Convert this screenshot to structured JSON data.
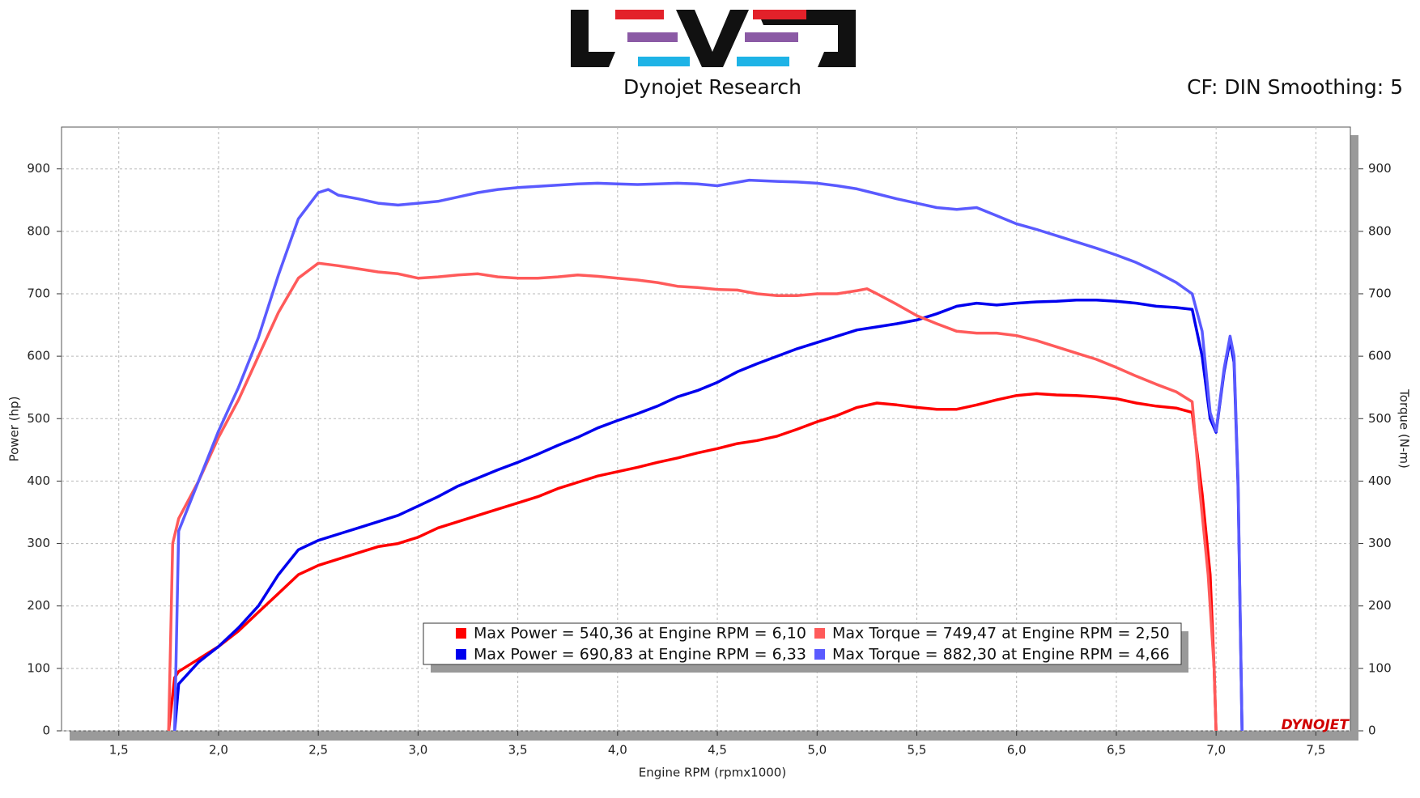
{
  "header": {
    "title": "Dynojet Research",
    "settings": "CF: DIN Smoothing: 5"
  },
  "chart_data": {
    "type": "line",
    "brand": "DYNOJET",
    "xlabel": "Engine RPM (rpmx1000)",
    "ylabel": "Power (hp)",
    "y2label": "Torque (N-m)",
    "xlim": [
      1.213,
      7.673
    ],
    "ylim": [
      0,
      967
    ],
    "y2lim": [
      0,
      967
    ],
    "grid": true,
    "xticks": [
      {
        "value": 1.5,
        "label": "1,5"
      },
      {
        "value": 2.0,
        "label": "2,0"
      },
      {
        "value": 2.5,
        "label": "2,5"
      },
      {
        "value": 3.0,
        "label": "3,0"
      },
      {
        "value": 3.5,
        "label": "3,5"
      },
      {
        "value": 4.0,
        "label": "4,0"
      },
      {
        "value": 4.5,
        "label": "4,5"
      },
      {
        "value": 5.0,
        "label": "5,0"
      },
      {
        "value": 5.5,
        "label": "5,5"
      },
      {
        "value": 6.0,
        "label": "6,0"
      },
      {
        "value": 6.5,
        "label": "6,5"
      },
      {
        "value": 7.0,
        "label": "7,0"
      },
      {
        "value": 7.5,
        "label": "7,5"
      }
    ],
    "yticks": [
      0,
      100,
      200,
      300,
      400,
      500,
      600,
      700,
      800,
      900
    ],
    "y2ticks": [
      0,
      100,
      200,
      300,
      400,
      500,
      600,
      700,
      800,
      900
    ],
    "series": [
      {
        "name": "Max Power = 540,36 at Engine RPM = 6,10",
        "color": "#ff0000",
        "x": [
          1.75,
          1.78,
          1.8,
          1.9,
          2.0,
          2.1,
          2.2,
          2.3,
          2.4,
          2.5,
          2.6,
          2.7,
          2.8,
          2.9,
          3.0,
          3.1,
          3.2,
          3.3,
          3.4,
          3.5,
          3.6,
          3.7,
          3.8,
          3.9,
          4.0,
          4.1,
          4.2,
          4.3,
          4.4,
          4.5,
          4.6,
          4.7,
          4.8,
          4.9,
          5.0,
          5.1,
          5.2,
          5.3,
          5.4,
          5.5,
          5.6,
          5.7,
          5.8,
          5.9,
          6.0,
          6.1,
          6.2,
          6.3,
          6.4,
          6.5,
          6.6,
          6.7,
          6.8,
          6.88,
          6.93,
          6.97,
          6.99,
          7.0
        ],
        "values": [
          0,
          85,
          95,
          115,
          135,
          160,
          190,
          220,
          250,
          265,
          275,
          285,
          295,
          300,
          310,
          325,
          335,
          345,
          355,
          365,
          375,
          388,
          398,
          408,
          415,
          422,
          430,
          437,
          445,
          452,
          460,
          465,
          472,
          483,
          495,
          505,
          518,
          525,
          522,
          518,
          515,
          515,
          522,
          530,
          537,
          540,
          538,
          537,
          535,
          532,
          525,
          520,
          517,
          510,
          380,
          250,
          100,
          0
        ]
      },
      {
        "name": "Max Power = 690,83 at Engine RPM = 6,33",
        "color": "#0000ee",
        "x": [
          1.78,
          1.8,
          1.9,
          2.0,
          2.1,
          2.2,
          2.3,
          2.4,
          2.5,
          2.6,
          2.7,
          2.8,
          2.9,
          3.0,
          3.1,
          3.2,
          3.3,
          3.4,
          3.5,
          3.6,
          3.7,
          3.8,
          3.9,
          4.0,
          4.1,
          4.2,
          4.3,
          4.4,
          4.5,
          4.6,
          4.7,
          4.8,
          4.9,
          5.0,
          5.1,
          5.2,
          5.3,
          5.4,
          5.5,
          5.6,
          5.7,
          5.8,
          5.9,
          6.0,
          6.1,
          6.2,
          6.3,
          6.4,
          6.5,
          6.6,
          6.7,
          6.8,
          6.88,
          6.93,
          6.97,
          7.0,
          7.04,
          7.07,
          7.09,
          7.11,
          7.13
        ],
        "values": [
          0,
          75,
          110,
          135,
          165,
          200,
          250,
          290,
          305,
          315,
          325,
          335,
          345,
          360,
          375,
          392,
          405,
          418,
          430,
          443,
          457,
          470,
          485,
          497,
          508,
          520,
          535,
          545,
          558,
          575,
          588,
          600,
          612,
          622,
          632,
          642,
          647,
          652,
          658,
          668,
          680,
          685,
          682,
          685,
          687,
          688,
          690,
          690,
          688,
          685,
          680,
          678,
          675,
          600,
          500,
          478,
          575,
          625,
          590,
          390,
          0
        ]
      },
      {
        "name": "Max Torque = 749,47 at Engine RPM = 2,50",
        "color": "#ff5a5a",
        "axis": "y2",
        "x": [
          1.75,
          1.77,
          1.8,
          1.9,
          2.0,
          2.1,
          2.2,
          2.3,
          2.4,
          2.5,
          2.6,
          2.7,
          2.8,
          2.9,
          3.0,
          3.1,
          3.2,
          3.3,
          3.4,
          3.5,
          3.6,
          3.7,
          3.8,
          3.9,
          4.0,
          4.1,
          4.2,
          4.3,
          4.4,
          4.5,
          4.6,
          4.7,
          4.8,
          4.9,
          5.0,
          5.1,
          5.2,
          5.25,
          5.3,
          5.4,
          5.5,
          5.6,
          5.7,
          5.8,
          5.9,
          6.0,
          6.1,
          6.2,
          6.3,
          6.4,
          6.5,
          6.6,
          6.7,
          6.8,
          6.88,
          6.92,
          6.96,
          6.99,
          7.0
        ],
        "values": [
          0,
          300,
          340,
          400,
          470,
          530,
          600,
          670,
          725,
          749,
          745,
          740,
          735,
          732,
          725,
          727,
          730,
          732,
          727,
          725,
          725,
          727,
          730,
          728,
          725,
          722,
          718,
          712,
          710,
          707,
          706,
          700,
          697,
          697,
          700,
          700,
          705,
          708,
          700,
          683,
          665,
          652,
          640,
          637,
          637,
          633,
          625,
          615,
          605,
          595,
          582,
          568,
          555,
          543,
          527,
          380,
          250,
          100,
          0
        ]
      },
      {
        "name": "Max Torque = 882,30 at Engine RPM = 4,66",
        "color": "#5a5aff",
        "axis": "y2",
        "x": [
          1.78,
          1.8,
          1.9,
          2.0,
          2.1,
          2.2,
          2.3,
          2.4,
          2.5,
          2.55,
          2.6,
          2.7,
          2.8,
          2.9,
          3.0,
          3.1,
          3.2,
          3.3,
          3.4,
          3.5,
          3.6,
          3.7,
          3.8,
          3.9,
          4.0,
          4.1,
          4.2,
          4.3,
          4.4,
          4.5,
          4.66,
          4.8,
          4.9,
          5.0,
          5.1,
          5.2,
          5.3,
          5.4,
          5.5,
          5.6,
          5.7,
          5.8,
          5.9,
          6.0,
          6.1,
          6.2,
          6.3,
          6.4,
          6.5,
          6.6,
          6.7,
          6.8,
          6.88,
          6.93,
          6.97,
          7.0,
          7.04,
          7.07,
          7.09,
          7.11,
          7.13
        ],
        "values": [
          0,
          320,
          400,
          480,
          550,
          630,
          730,
          820,
          862,
          867,
          858,
          852,
          845,
          842,
          845,
          848,
          855,
          862,
          867,
          870,
          872,
          874,
          876,
          877,
          876,
          875,
          876,
          877,
          876,
          873,
          882,
          880,
          879,
          877,
          873,
          868,
          860,
          852,
          845,
          838,
          835,
          838,
          825,
          812,
          803,
          793,
          783,
          773,
          762,
          750,
          735,
          718,
          700,
          640,
          510,
          480,
          580,
          632,
          600,
          400,
          0
        ]
      }
    ]
  }
}
